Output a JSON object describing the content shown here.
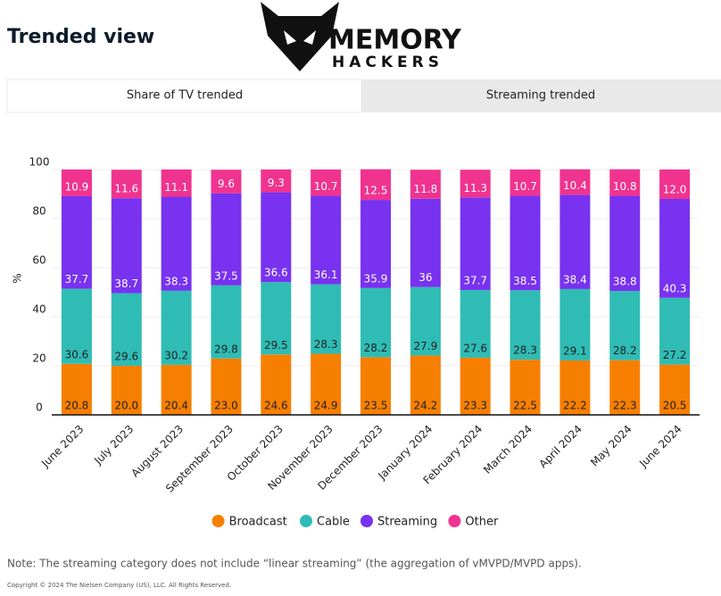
{
  "header": {
    "title": "Trended view",
    "logo": [
      "MEMORY",
      "HACKERS"
    ]
  },
  "tabs": [
    "Share of TV trended",
    "Streaming trended"
  ],
  "chart_data": {
    "type": "stacked_bar",
    "y_label": "%",
    "categories": [
      "June 2023",
      "July 2023",
      "August 2023",
      "September 2023",
      "October 2023",
      "November 2023",
      "December 2023",
      "January 2024",
      "February 2024",
      "March 2024",
      "April 2024",
      "May 2024",
      "June 2024"
    ],
    "series": [
      {
        "name": "Broadcast",
        "color": "#f77f00",
        "label_color": "#222222",
        "values": [
          20.8,
          20.0,
          20.4,
          23.0,
          24.6,
          24.9,
          23.5,
          24.2,
          23.3,
          22.5,
          22.2,
          22.3,
          20.5
        ],
        "value_labels": [
          "20.8",
          "20.0",
          "20.4",
          "23.0",
          "24.6",
          "24.9",
          "23.5",
          "24.2",
          "23.3",
          "22.5",
          "22.2",
          "22.3",
          "20.5"
        ]
      },
      {
        "name": "Cable",
        "color": "#2fbcb5",
        "label_color": "#222222",
        "values": [
          30.6,
          29.6,
          30.2,
          29.8,
          29.5,
          28.3,
          28.2,
          27.9,
          27.6,
          28.3,
          29.1,
          28.2,
          27.2
        ],
        "value_labels": [
          "30.6",
          "29.6",
          "30.2",
          "29.8",
          "29.5",
          "28.3",
          "28.2",
          "27.9",
          "27.6",
          "28.3",
          "29.1",
          "28.2",
          "27.2"
        ]
      },
      {
        "name": "Streaming",
        "color": "#7832f0",
        "label_color": "#ffffff",
        "values": [
          37.7,
          38.7,
          38.3,
          37.5,
          36.6,
          36.1,
          35.9,
          36,
          37.7,
          38.5,
          38.4,
          38.8,
          40.3
        ],
        "value_labels": [
          "37.7",
          "38.7",
          "38.3",
          "37.5",
          "36.6",
          "36.1",
          "35.9",
          "36",
          "37.7",
          "38.5",
          "38.4",
          "38.8",
          "40.3"
        ]
      },
      {
        "name": "Other",
        "color": "#f0338f",
        "label_color": "#ffffff",
        "values": [
          10.9,
          11.6,
          11.1,
          9.6,
          9.3,
          10.7,
          12.5,
          11.8,
          11.3,
          10.7,
          10.4,
          10.8,
          12.0
        ],
        "value_labels": [
          "10.9",
          "11.6",
          "11.1",
          "9.6",
          "9.3",
          "10.7",
          "12.5",
          "11.8",
          "11.3",
          "10.7",
          "10.4",
          "10.8",
          "12.0"
        ]
      }
    ],
    "ylim": [
      0,
      100
    ],
    "yticks": [
      0,
      20,
      40,
      60,
      80,
      100
    ],
    "grid": true
  },
  "note": "Note: The streaming category does not include “linear streaming” (the aggregation of vMVPD/MVPD apps).",
  "copyright": "Copyright © 2024 The Nielsen Company (US), LLC. All Rights Reserved."
}
